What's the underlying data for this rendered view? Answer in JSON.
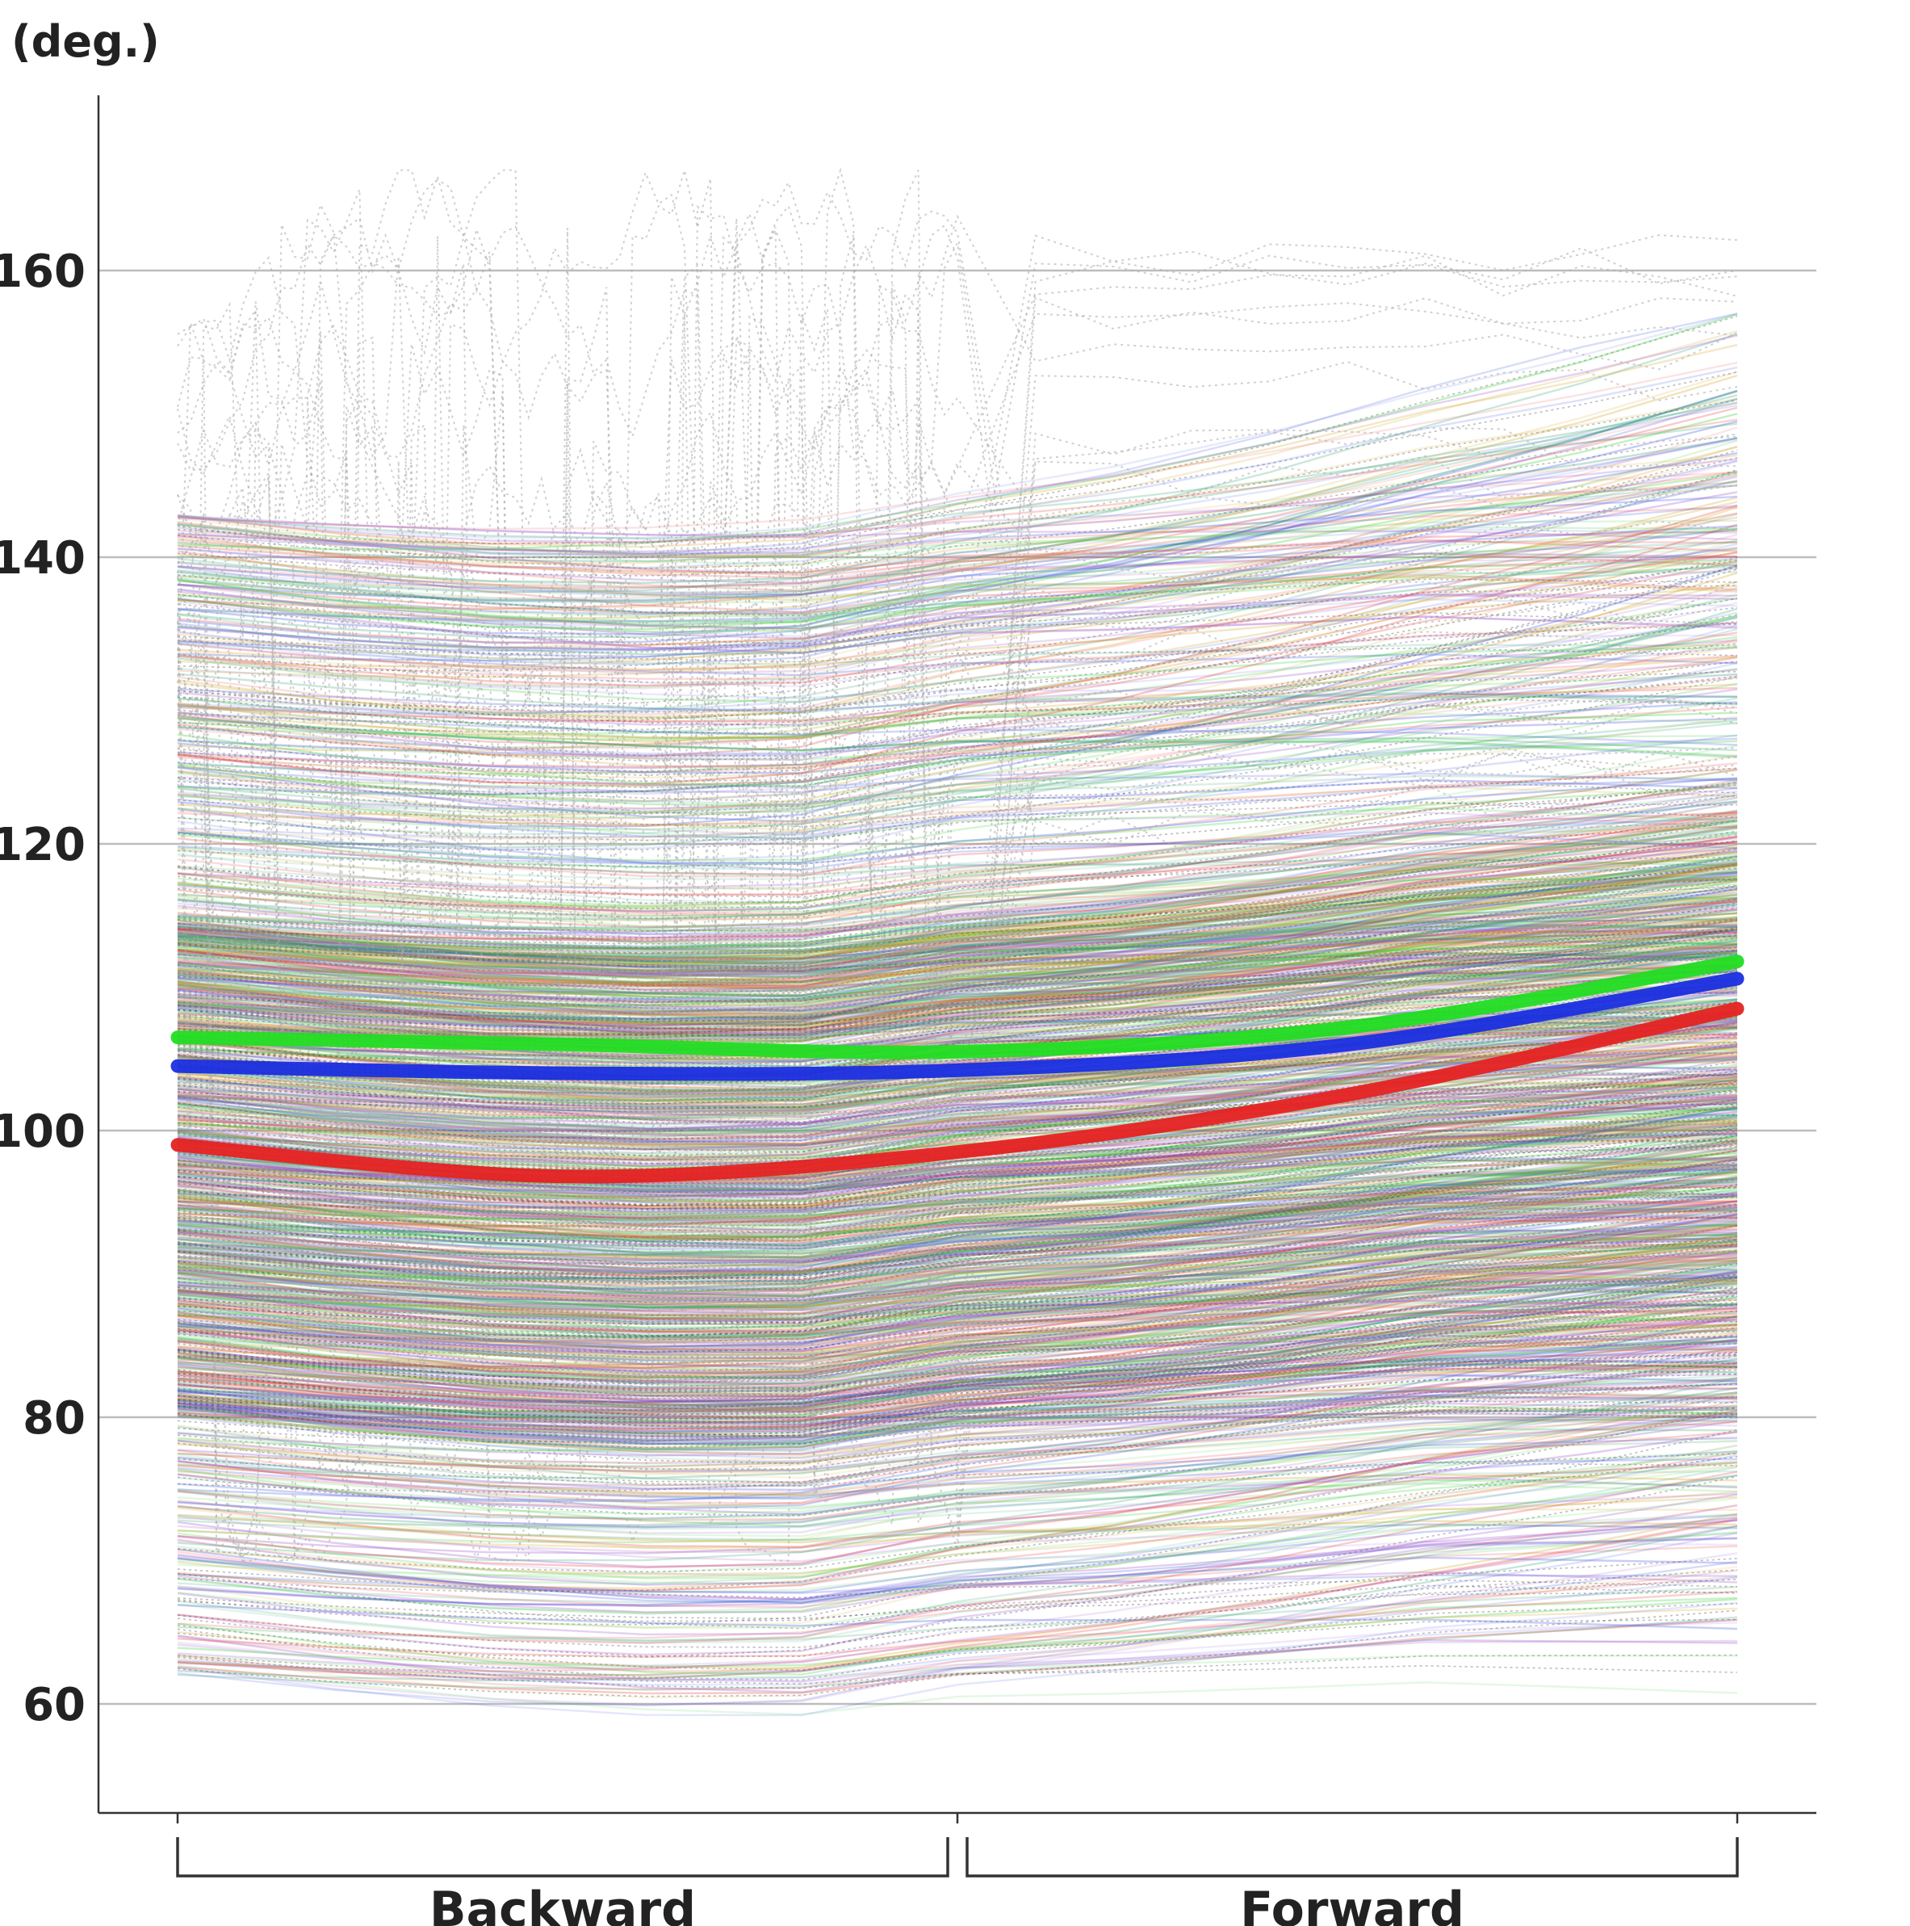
{
  "chart_data": {
    "type": "line",
    "title": "",
    "ylabel": "(deg.)",
    "xlabel": "",
    "ylim": [
      52.5,
      172
    ],
    "xlim": [
      0,
      1
    ],
    "y_ticks": [
      60,
      80,
      100,
      120,
      140,
      160
    ],
    "y_tick_labels": [
      "60",
      "80",
      "100",
      "120",
      "140",
      "160"
    ],
    "grid": true,
    "x_sections": [
      {
        "label": "Backward",
        "range": [
          0,
          0.5
        ]
      },
      {
        "label": "Forward",
        "range": [
          0.5,
          1
        ]
      }
    ],
    "highlight_series": [
      {
        "color": "#22dd22",
        "x": [
          0,
          0.25,
          0.5,
          0.75,
          1
        ],
        "y": [
          106.5,
          106.0,
          105.5,
          107.2,
          111.8
        ]
      },
      {
        "color": "#1a2ee0",
        "x": [
          0,
          0.25,
          0.5,
          0.75,
          1
        ],
        "y": [
          104.5,
          104.0,
          104.2,
          106.0,
          110.6
        ]
      },
      {
        "color": "#e52222",
        "x": [
          0,
          0.25,
          0.5,
          0.75,
          1
        ],
        "y": [
          99.0,
          96.8,
          98.5,
          102.5,
          108.5
        ]
      }
    ],
    "background_series_colors": [
      "#2ecc2e",
      "#e53b3b",
      "#3a4fe0",
      "#9a4fc8",
      "#2a9a6a",
      "#d0a020",
      "#444444"
    ],
    "background_series_count": 1500,
    "background_value_range": [
      58,
      157
    ],
    "outlier_series_color": "#aaaaaa"
  }
}
